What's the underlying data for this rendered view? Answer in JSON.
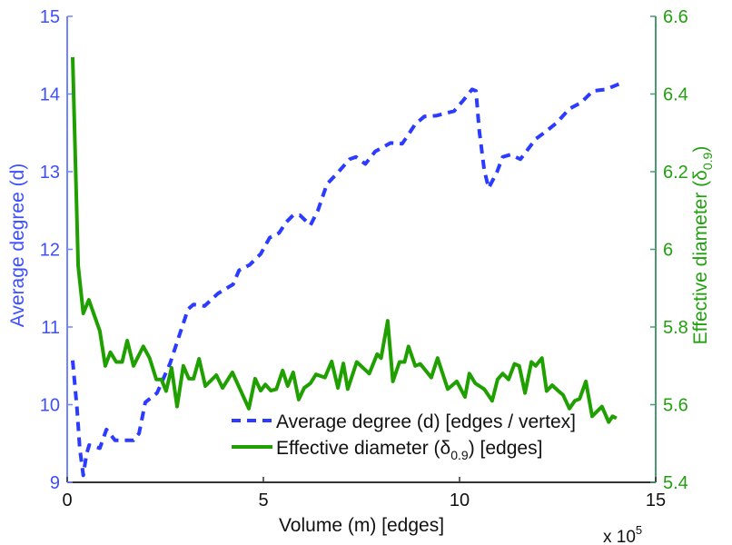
{
  "chart_data": {
    "type": "line",
    "title": "",
    "xlabel": "Volume (m) [edges]",
    "x_multiplier": "x 10",
    "x_multiplier_exp": "5",
    "ylabel_left": "Average degree (d)",
    "ylabel_right": "Effective diameter (",
    "ylabel_right_symbol": "δ",
    "ylabel_right_sub": "0.9",
    "ylabel_right_close": ")",
    "xlim": [
      0,
      15
    ],
    "ylim_left": [
      9,
      15
    ],
    "ylim_right": [
      5.4,
      6.6
    ],
    "xticks": [
      "0",
      "5",
      "10",
      "15"
    ],
    "yticks_left": [
      "9",
      "10",
      "11",
      "12",
      "13",
      "14",
      "15"
    ],
    "yticks_right": [
      "5.4",
      "5.6",
      "5.8",
      "6",
      "6.2",
      "6.4",
      "6.6"
    ],
    "grid": false,
    "legend_position": "bottom-right",
    "colors": {
      "left": "#2b3bff",
      "right": "#1fa000",
      "left_axis": "#6f86ff",
      "right_axis": "#4a9a70",
      "left_text": "#3d4fff",
      "right_text": "#22a010"
    },
    "series": [
      {
        "name": "Average degree (d) [edges / vertex]",
        "axis": "left",
        "style": "dashed",
        "x": [
          0.14,
          0.25,
          0.32,
          0.41,
          0.49,
          0.56,
          0.83,
          1.0,
          1.22,
          1.69,
          1.83,
          1.99,
          2.29,
          2.62,
          2.85,
          3.08,
          3.22,
          3.5,
          3.84,
          4.23,
          4.38,
          4.65,
          4.93,
          5.16,
          5.4,
          5.58,
          5.76,
          5.93,
          6.2,
          6.39,
          6.62,
          6.9,
          7.2,
          7.36,
          7.6,
          7.85,
          8.24,
          8.54,
          8.87,
          9.1,
          9.4,
          9.86,
          10.1,
          10.32,
          10.42,
          10.5,
          10.63,
          10.74,
          10.95,
          11.1,
          11.3,
          11.55,
          11.94,
          12.18,
          12.48,
          12.8,
          13.1,
          13.4,
          13.73,
          14.07
        ],
        "y": [
          10.57,
          9.95,
          9.44,
          9.09,
          9.36,
          9.48,
          9.44,
          9.68,
          9.54,
          9.54,
          9.63,
          10.03,
          10.15,
          10.53,
          10.88,
          11.23,
          11.29,
          11.27,
          11.43,
          11.55,
          11.73,
          11.8,
          11.94,
          12.15,
          12.21,
          12.35,
          12.44,
          12.44,
          12.31,
          12.5,
          12.84,
          12.99,
          13.16,
          13.19,
          13.1,
          13.26,
          13.37,
          13.36,
          13.61,
          13.71,
          13.72,
          13.78,
          13.92,
          14.06,
          14.04,
          13.54,
          13.02,
          12.79,
          12.99,
          13.19,
          13.22,
          13.16,
          13.42,
          13.51,
          13.63,
          13.81,
          13.89,
          14.04,
          14.06,
          14.13
        ]
      },
      {
        "name_prefix": "Effective diameter (",
        "name_symbol": "δ",
        "name_sub": "0.9",
        "name_suffix": ") [edges]",
        "axis": "right",
        "style": "solid",
        "x": [
          0.14,
          0.28,
          0.41,
          0.55,
          0.83,
          0.97,
          1.1,
          1.25,
          1.4,
          1.53,
          1.69,
          1.94,
          2.1,
          2.27,
          2.4,
          2.52,
          2.66,
          2.8,
          2.96,
          3.1,
          3.22,
          3.36,
          3.52,
          3.8,
          3.96,
          4.21,
          4.63,
          4.79,
          4.93,
          5.05,
          5.19,
          5.33,
          5.49,
          5.62,
          5.76,
          5.9,
          6.04,
          6.2,
          6.34,
          6.57,
          6.74,
          6.9,
          7.04,
          7.15,
          7.38,
          7.7,
          7.9,
          8.0,
          8.17,
          8.3,
          8.47,
          8.6,
          8.7,
          8.87,
          9.0,
          9.28,
          9.44,
          9.7,
          9.93,
          10.14,
          10.25,
          10.4,
          10.63,
          10.83,
          10.97,
          11.1,
          11.25,
          11.4,
          11.52,
          11.67,
          11.83,
          11.94,
          12.1,
          12.22,
          12.36,
          12.52,
          12.64,
          12.8,
          12.94,
          13.06,
          13.22,
          13.38,
          13.63,
          13.8,
          13.9,
          14.0
        ],
        "y": [
          6.495,
          5.957,
          5.835,
          5.87,
          5.79,
          5.7,
          5.735,
          5.71,
          5.71,
          5.765,
          5.7,
          5.75,
          5.72,
          5.665,
          5.665,
          5.635,
          5.695,
          5.595,
          5.7,
          5.667,
          5.667,
          5.718,
          5.648,
          5.676,
          5.643,
          5.683,
          5.59,
          5.667,
          5.636,
          5.652,
          5.636,
          5.64,
          5.688,
          5.648,
          5.683,
          5.613,
          5.643,
          5.655,
          5.678,
          5.67,
          5.711,
          5.643,
          5.706,
          5.64,
          5.71,
          5.68,
          5.73,
          5.72,
          5.816,
          5.66,
          5.71,
          5.71,
          5.75,
          5.7,
          5.705,
          5.67,
          5.72,
          5.64,
          5.66,
          5.62,
          5.68,
          5.655,
          5.64,
          5.61,
          5.665,
          5.68,
          5.665,
          5.705,
          5.7,
          5.63,
          5.71,
          5.7,
          5.72,
          5.635,
          5.65,
          5.635,
          5.625,
          5.59,
          5.61,
          5.615,
          5.66,
          5.57,
          5.595,
          5.555,
          5.57,
          5.565
        ]
      }
    ]
  }
}
